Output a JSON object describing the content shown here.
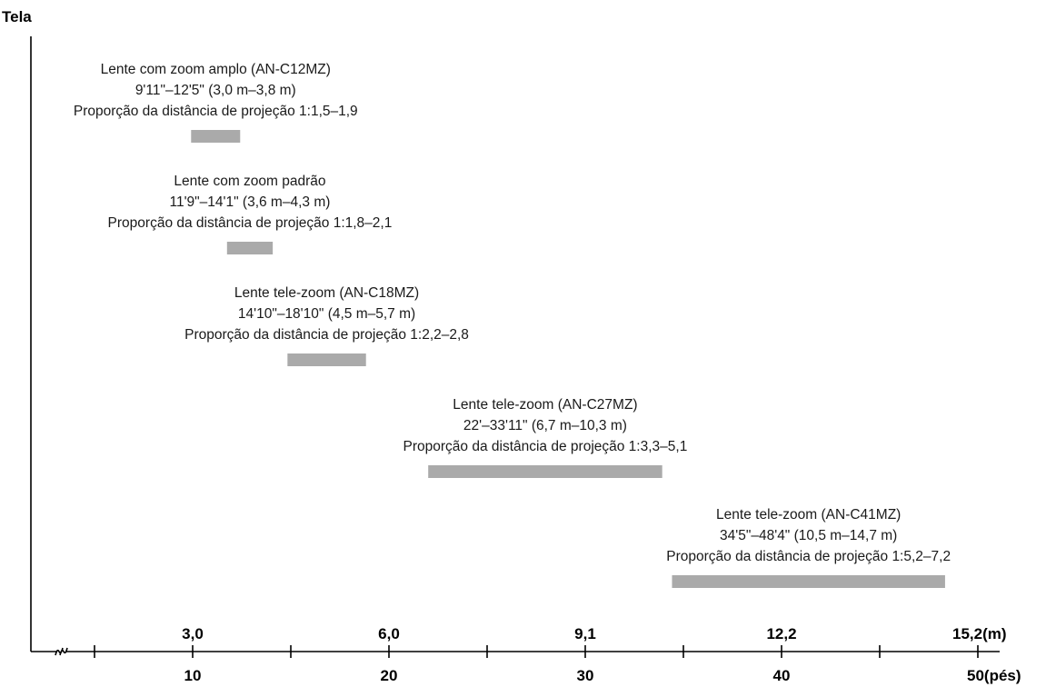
{
  "chart_data": {
    "type": "bar",
    "orientation": "horizontal",
    "y_axis_title": "Tela",
    "x_axis_feet": {
      "ticks": [
        10,
        20,
        30,
        40,
        50
      ],
      "labels": [
        "10",
        "20",
        "30",
        "40",
        "50(pés)"
      ],
      "range": [
        0,
        50
      ],
      "broken_axis": true
    },
    "x_axis_meters": {
      "ticks": [
        3.0,
        6.0,
        9.1,
        12.2,
        15.2
      ],
      "labels": [
        "3,0",
        "6,0",
        "9,1",
        "12,2",
        "15,2(m)"
      ]
    },
    "series": [
      {
        "name": "Lente com zoom amplo (AN-C12MZ)",
        "range_label": "9'11\"–12'5\" (3,0 m–3,8 m)",
        "ratio_label": "Proporção da distância de projeção 1:1,5–1,9",
        "start_ft": 9.92,
        "end_ft": 12.42
      },
      {
        "name": "Lente com zoom padrão",
        "range_label": "11'9\"–14'1\" (3,6 m–4,3 m)",
        "ratio_label": "Proporção da distância de projeção 1:1,8–2,1",
        "start_ft": 11.75,
        "end_ft": 14.08
      },
      {
        "name": "Lente tele-zoom (AN-C18MZ)",
        "range_label": "14'10\"–18'10\" (4,5 m–5,7 m)",
        "ratio_label": "Proporção da distância de projeção 1:2,2–2,8",
        "start_ft": 14.83,
        "end_ft": 18.83
      },
      {
        "name": "Lente tele-zoom (AN-C27MZ)",
        "range_label": "22'–33'11\" (6,7 m–10,3 m)",
        "ratio_label": "Proporção da distância de projeção 1:3,3–5,1",
        "start_ft": 22.0,
        "end_ft": 33.92
      },
      {
        "name": "Lente tele-zoom (AN-C41MZ)",
        "range_label": "34'5\"–48'4\" (10,5 m–14,7 m)",
        "ratio_label": "Proporção da distância de projeção 1:5,2–7,2",
        "start_ft": 34.42,
        "end_ft": 48.33
      }
    ],
    "bar_color": "#aaaaaa"
  }
}
